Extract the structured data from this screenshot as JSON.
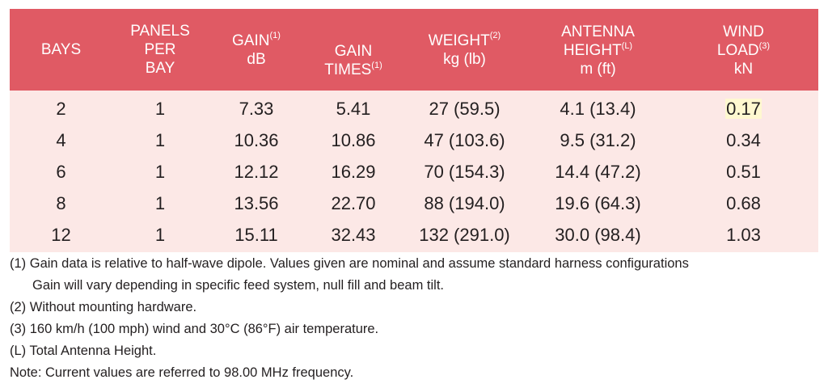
{
  "table": {
    "headers": [
      {
        "lines": [
          "BAYS"
        ],
        "sup": [
          ""
        ]
      },
      {
        "lines": [
          "PANELS",
          "PER",
          "BAY"
        ],
        "sup": [
          "",
          "",
          ""
        ]
      },
      {
        "lines": [
          "GAIN",
          "dB"
        ],
        "sup": [
          "(1)",
          ""
        ]
      },
      {
        "lines": [
          "GAIN",
          "TIMES"
        ],
        "sup": [
          "",
          "(1)"
        ]
      },
      {
        "lines": [
          "WEIGHT",
          "kg (lb)"
        ],
        "sup": [
          "(2)",
          ""
        ]
      },
      {
        "lines": [
          "ANTENNA",
          "HEIGHT",
          "m (ft)"
        ],
        "sup": [
          "",
          "(L)",
          ""
        ]
      },
      {
        "lines": [
          "WIND",
          "LOAD",
          "kN"
        ],
        "sup": [
          "",
          "(3)",
          ""
        ]
      }
    ],
    "rows": [
      [
        "2",
        "1",
        "7.33",
        "5.41",
        "27 (59.5)",
        "4.1 (13.4)",
        "0.17"
      ],
      [
        "4",
        "1",
        "10.36",
        "10.86",
        "47 (103.6)",
        "9.5 (31.2)",
        "0.34"
      ],
      [
        "6",
        "1",
        "12.12",
        "16.29",
        "70 (154.3)",
        "14.4 (47.2)",
        "0.51"
      ],
      [
        "8",
        "1",
        "13.56",
        "22.70",
        "88 (194.0)",
        "19.6 (64.3)",
        "0.68"
      ],
      [
        "12",
        "1",
        "15.11",
        "32.43",
        "132 (291.0)",
        "30.0 (98.4)",
        "1.03"
      ]
    ]
  },
  "notes": [
    "(1) Gain data is relative to half-wave dipole. Values given are nominal and assume standard harness configurations",
    "Gain will vary depending in specific feed system, null fill and beam tilt.",
    "(2) Without mounting hardware.",
    "(3) 160 km/h (100 mph) wind and 30°C (86°F) air temperature.",
    "(L) Total Antenna Height.",
    "Note: Current values are referred to 98.00 MHz frequency."
  ],
  "colors": {
    "header_bg": "#e05a64",
    "body_bg": "#fce8e6",
    "highlight": "#fff8d0"
  }
}
